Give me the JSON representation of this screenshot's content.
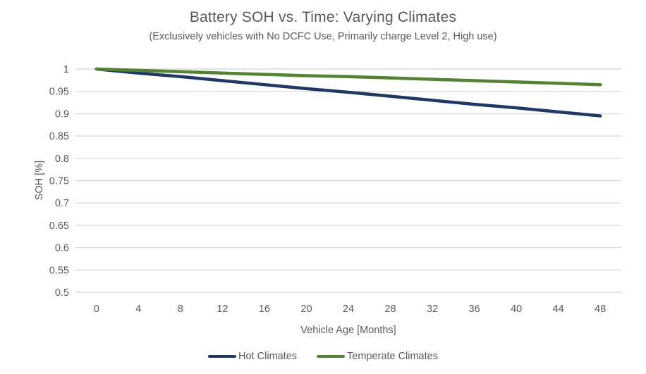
{
  "chart_data": {
    "type": "line",
    "title": "Battery SOH vs. Time: Varying Climates",
    "subtitle": "(Exclusively vehicles with No DCFC Use, Primarily charge Level 2, High use)",
    "xlabel": "Vehicle Age [Months]",
    "ylabel": "SOH [%]",
    "x": [
      0,
      4,
      8,
      12,
      16,
      20,
      24,
      28,
      32,
      36,
      40,
      44,
      48
    ],
    "series": [
      {
        "name": "Hot Climates",
        "color": "#1F3864",
        "values": [
          1.0,
          0.991,
          0.983,
          0.974,
          0.965,
          0.956,
          0.948,
          0.939,
          0.93,
          0.921,
          0.913,
          0.904,
          0.895
        ]
      },
      {
        "name": "Temperate Climates",
        "color": "#548235",
        "values": [
          1.0,
          0.997,
          0.994,
          0.991,
          0.988,
          0.985,
          0.983,
          0.98,
          0.977,
          0.974,
          0.971,
          0.968,
          0.965
        ]
      }
    ],
    "ylim": [
      0.5,
      1.0
    ],
    "y_tick_step": 0.05,
    "grid": true,
    "legend_position": "bottom",
    "colors": {
      "grid": "#D9D9D9",
      "axis_text": "#595959",
      "title_text": "#595959"
    }
  }
}
